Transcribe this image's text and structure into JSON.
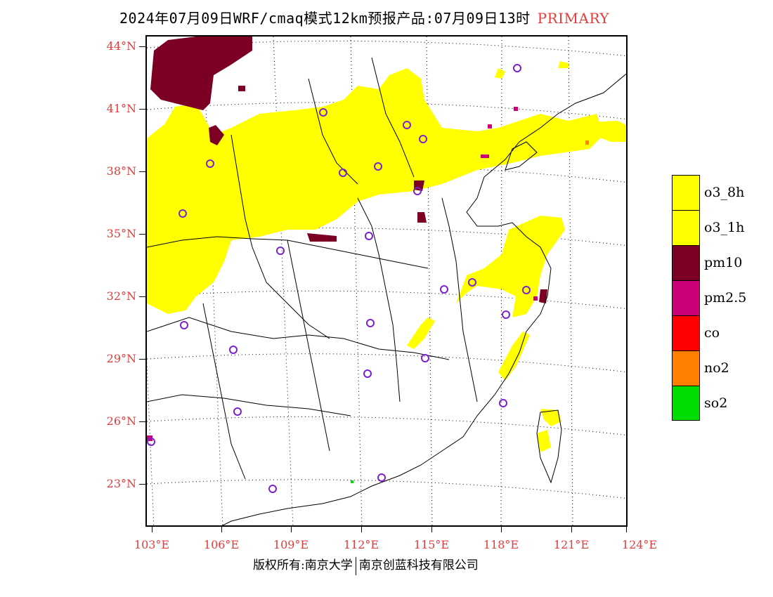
{
  "title": {
    "text": "2024年07月09日WRF/cmaq模式12km预报产品:07月09日13时",
    "tag": "PRIMARY"
  },
  "lat_labels": [
    "44°N",
    "41°N",
    "38°N",
    "35°N",
    "32°N",
    "29°N",
    "26°N",
    "23°N"
  ],
  "lon_labels": [
    "103°E",
    "106°E",
    "109°E",
    "112°E",
    "115°E",
    "118°E",
    "121°E",
    "124°E"
  ],
  "legend": [
    {
      "label": "o3_8h",
      "color": "#ffff00"
    },
    {
      "label": "o3_1h",
      "color": "#ffff00"
    },
    {
      "label": "pm10",
      "color": "#7b0024"
    },
    {
      "label": "pm2.5",
      "color": "#cc0077"
    },
    {
      "label": "co",
      "color": "#ff0000"
    },
    {
      "label": "no2",
      "color": "#ff7f00"
    },
    {
      "label": "so2",
      "color": "#00dd00"
    }
  ],
  "footer": {
    "left": "版权所有:南京大学",
    "right": "南京创蓝科技有限公司"
  },
  "colors": {
    "accent_label": "#e53b3b",
    "o3": "#ffff00",
    "pm10": "#7b0024",
    "pm25": "#cc0077",
    "station_marker": "#7a22cc"
  }
}
